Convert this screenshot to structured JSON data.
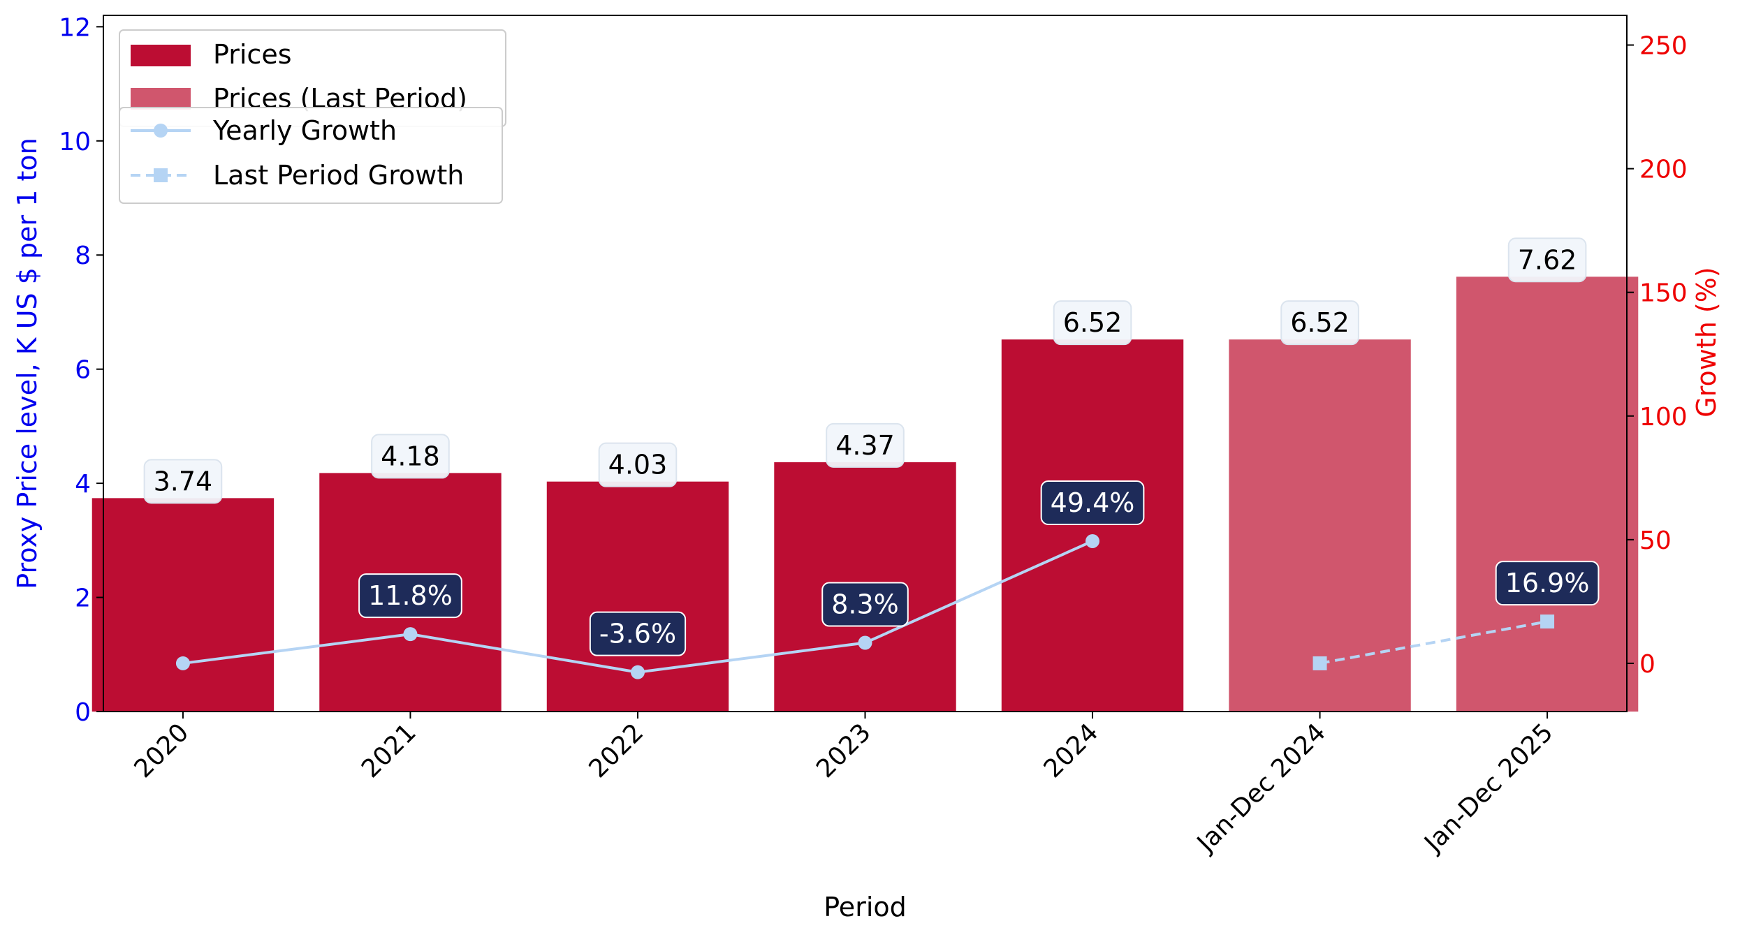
{
  "chart_data": {
    "type": "bar",
    "categories": [
      "2020",
      "2021",
      "2022",
      "2023",
      "2024",
      "Jan-Dec 2024",
      "Jan-Dec 2025"
    ],
    "series": [
      {
        "name": "Prices",
        "axis": "left",
        "kind": "bar",
        "values": [
          3.74,
          4.18,
          4.03,
          4.37,
          6.52,
          null,
          null
        ],
        "labels": [
          "3.74",
          "4.18",
          "4.03",
          "4.37",
          "6.52",
          null,
          null
        ]
      },
      {
        "name": "Prices (Last Period)",
        "axis": "left",
        "kind": "bar",
        "values": [
          null,
          null,
          null,
          null,
          null,
          6.52,
          7.62
        ],
        "labels": [
          null,
          null,
          null,
          null,
          null,
          "6.52",
          "7.62"
        ]
      },
      {
        "name": "Yearly Growth",
        "axis": "right",
        "kind": "line",
        "values": [
          0,
          11.8,
          -3.6,
          8.3,
          49.4,
          null,
          null
        ],
        "labels": [
          null,
          "11.8%",
          "-3.6%",
          "8.3%",
          "49.4%",
          null,
          null
        ]
      },
      {
        "name": "Last Period Growth",
        "axis": "right",
        "kind": "line-dashed",
        "values": [
          null,
          null,
          null,
          null,
          null,
          0,
          16.9
        ],
        "labels": [
          null,
          null,
          null,
          null,
          null,
          null,
          "16.9%"
        ]
      }
    ],
    "xlabel": "Period",
    "ylabel": "Proxy Price level, K US $ per 1 ton",
    "y2label": "Growth (%)",
    "ylim": [
      0,
      12.2
    ],
    "y2lim": [
      -19.5,
      262
    ],
    "yticks": [
      "0",
      "2",
      "4",
      "6",
      "8",
      "10",
      "12"
    ],
    "y2ticks": [
      "0",
      "50",
      "100",
      "150",
      "200",
      "250"
    ],
    "grid": false,
    "legend_placement": "top-left"
  },
  "colors": {
    "prices": "#bc0d33",
    "prices_last": "#d0566d",
    "growth_line": "#b5d4f4",
    "growth_label_bg": "#1e2b59",
    "left_axis": "#0000ee",
    "right_axis": "#ee0000"
  }
}
